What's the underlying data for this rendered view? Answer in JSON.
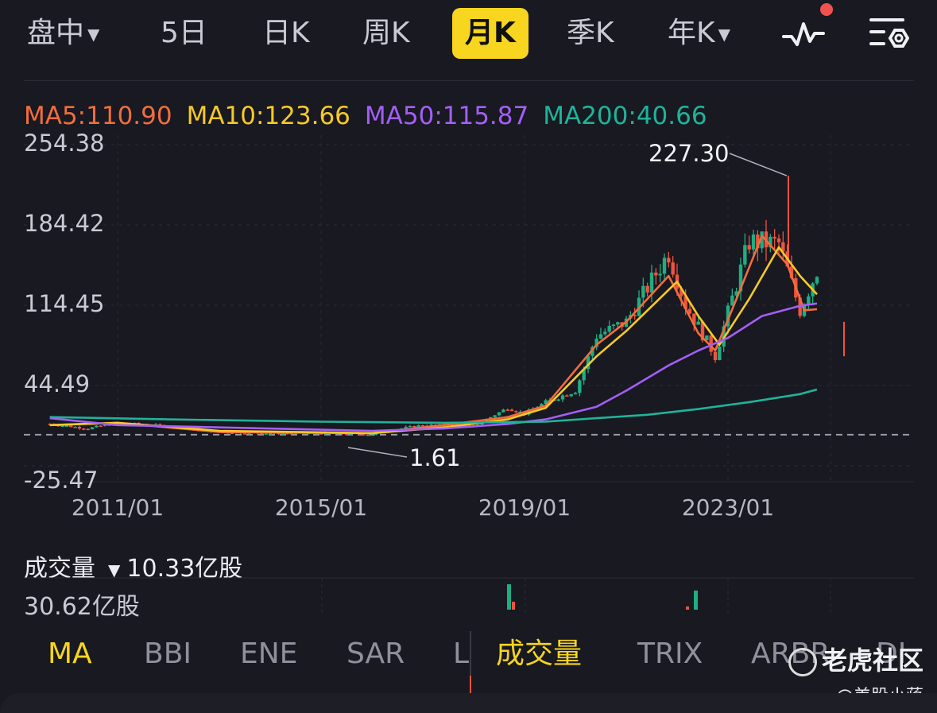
{
  "tabs": [
    {
      "label": "盘中",
      "has_dropdown": true
    },
    {
      "label": "5日",
      "has_dropdown": false
    },
    {
      "label": "日K",
      "has_dropdown": false
    },
    {
      "label": "周K",
      "has_dropdown": false
    },
    {
      "label": "月K",
      "has_dropdown": false,
      "active": true
    },
    {
      "label": "季K",
      "has_dropdown": false
    },
    {
      "label": "年K",
      "has_dropdown": true
    }
  ],
  "toolbar_icons": [
    "pulse-line-icon",
    "settings-list-icon"
  ],
  "ma_legend": [
    {
      "label": "MA5:110.90",
      "color": "#f26d3d"
    },
    {
      "label": "MA10:123.66",
      "color": "#f8c927"
    },
    {
      "label": "MA50:115.87",
      "color": "#a45ef5"
    },
    {
      "label": "MA200:40.66",
      "color": "#1fb39b"
    }
  ],
  "annotations": {
    "high": "227.30",
    "low": "1.61"
  },
  "volume": {
    "label": "成交量",
    "value": "10.33亿股",
    "max_label": "30.62亿股"
  },
  "indicators": [
    {
      "label": "MA",
      "active": true
    },
    {
      "label": "BBI",
      "active": false
    },
    {
      "label": "ENE",
      "active": false
    },
    {
      "label": "SAR",
      "active": false
    },
    {
      "label": "L",
      "active": false
    },
    {
      "label": "成交量",
      "active": true
    },
    {
      "label": "TRIX",
      "active": false
    },
    {
      "label": "ARBR",
      "active": false
    },
    {
      "label": "DI",
      "active": false
    }
  ],
  "watermark": {
    "text": "老虎社区",
    "author": "@美股小蒋"
  },
  "colors": {
    "up": "#1fae82",
    "down": "#f0533f",
    "accent": "#f8d51f"
  },
  "chart_data": {
    "type": "candlestick",
    "interval": "monthly",
    "yticks": [
      "254.38",
      "184.42",
      "114.45",
      "44.49",
      "-25.47"
    ],
    "xticks": [
      "2011/01",
      "2015/01",
      "2019/01",
      "2023/01"
    ],
    "ylim": [
      -25.47,
      254.38
    ],
    "reference_line_value": 1.61,
    "high": 227.3,
    "low": 1.61,
    "series_close": [
      {
        "date": "2009/09",
        "value": 11
      },
      {
        "date": "2010/06",
        "value": 7
      },
      {
        "date": "2011/01",
        "value": 12
      },
      {
        "date": "2012/01",
        "value": 9
      },
      {
        "date": "2013/01",
        "value": 4
      },
      {
        "date": "2014/01",
        "value": 3
      },
      {
        "date": "2015/01",
        "value": 3
      },
      {
        "date": "2016/01",
        "value": 2
      },
      {
        "date": "2016/06",
        "value": 6
      },
      {
        "date": "2017/01",
        "value": 10
      },
      {
        "date": "2018/01",
        "value": 9
      },
      {
        "date": "2018/09",
        "value": 25
      },
      {
        "date": "2019/01",
        "value": 20
      },
      {
        "date": "2019/06",
        "value": 30
      },
      {
        "date": "2020/01",
        "value": 40
      },
      {
        "date": "2020/06",
        "value": 88
      },
      {
        "date": "2021/01",
        "value": 100
      },
      {
        "date": "2021/06",
        "value": 130
      },
      {
        "date": "2021/11",
        "value": 160
      },
      {
        "date": "2022/03",
        "value": 115
      },
      {
        "date": "2022/10",
        "value": 70
      },
      {
        "date": "2023/01",
        "value": 108
      },
      {
        "date": "2023/06",
        "value": 170
      },
      {
        "date": "2024/01",
        "value": 168
      },
      {
        "date": "2024/06",
        "value": 110
      },
      {
        "date": "2024/10",
        "value": 145
      }
    ],
    "series": [
      {
        "name": "MA5",
        "color": "#f26d3d",
        "values": [
          {
            "date": "2009/09",
            "value": 10
          },
          {
            "date": "2011/01",
            "value": 12
          },
          {
            "date": "2013/01",
            "value": 4
          },
          {
            "date": "2016/01",
            "value": 3
          },
          {
            "date": "2017/06",
            "value": 10
          },
          {
            "date": "2018/09",
            "value": 17
          },
          {
            "date": "2019/06",
            "value": 27
          },
          {
            "date": "2020/06",
            "value": 80
          },
          {
            "date": "2021/01",
            "value": 100
          },
          {
            "date": "2021/11",
            "value": 140
          },
          {
            "date": "2022/06",
            "value": 90
          },
          {
            "date": "2022/10",
            "value": 75
          },
          {
            "date": "2023/03",
            "value": 120
          },
          {
            "date": "2023/09",
            "value": 175
          },
          {
            "date": "2024/03",
            "value": 150
          },
          {
            "date": "2024/07",
            "value": 110
          },
          {
            "date": "2024/10",
            "value": 111
          }
        ]
      },
      {
        "name": "MA10",
        "color": "#f8c927",
        "values": [
          {
            "date": "2009/09",
            "value": 10
          },
          {
            "date": "2011/01",
            "value": 12
          },
          {
            "date": "2013/01",
            "value": 5
          },
          {
            "date": "2016/01",
            "value": 3
          },
          {
            "date": "2017/06",
            "value": 8
          },
          {
            "date": "2018/09",
            "value": 15
          },
          {
            "date": "2019/06",
            "value": 25
          },
          {
            "date": "2020/06",
            "value": 70
          },
          {
            "date": "2021/01",
            "value": 92
          },
          {
            "date": "2022/01",
            "value": 135
          },
          {
            "date": "2022/06",
            "value": 105
          },
          {
            "date": "2022/11",
            "value": 80
          },
          {
            "date": "2023/06",
            "value": 120
          },
          {
            "date": "2024/01",
            "value": 165
          },
          {
            "date": "2024/06",
            "value": 140
          },
          {
            "date": "2024/10",
            "value": 124
          }
        ]
      },
      {
        "name": "MA50",
        "color": "#a45ef5",
        "values": [
          {
            "date": "2009/09",
            "value": 16
          },
          {
            "date": "2011/01",
            "value": 10
          },
          {
            "date": "2013/01",
            "value": 8
          },
          {
            "date": "2016/01",
            "value": 5
          },
          {
            "date": "2017/06",
            "value": 7
          },
          {
            "date": "2018/09",
            "value": 11
          },
          {
            "date": "2019/06",
            "value": 15
          },
          {
            "date": "2020/06",
            "value": 26
          },
          {
            "date": "2021/01",
            "value": 40
          },
          {
            "date": "2021/11",
            "value": 62
          },
          {
            "date": "2022/06",
            "value": 75
          },
          {
            "date": "2023/01",
            "value": 86
          },
          {
            "date": "2023/09",
            "value": 105
          },
          {
            "date": "2024/06",
            "value": 114
          },
          {
            "date": "2024/10",
            "value": 116
          }
        ]
      },
      {
        "name": "MA200",
        "color": "#1fb39b",
        "values": [
          {
            "date": "2009/09",
            "value": 17
          },
          {
            "date": "2012/01",
            "value": 15
          },
          {
            "date": "2015/01",
            "value": 13
          },
          {
            "date": "2017/06",
            "value": 12
          },
          {
            "date": "2019/06",
            "value": 13
          },
          {
            "date": "2020/06",
            "value": 16
          },
          {
            "date": "2021/06",
            "value": 19
          },
          {
            "date": "2022/06",
            "value": 24
          },
          {
            "date": "2023/06",
            "value": 30
          },
          {
            "date": "2024/06",
            "value": 37
          },
          {
            "date": "2024/10",
            "value": 41
          }
        ]
      }
    ]
  }
}
